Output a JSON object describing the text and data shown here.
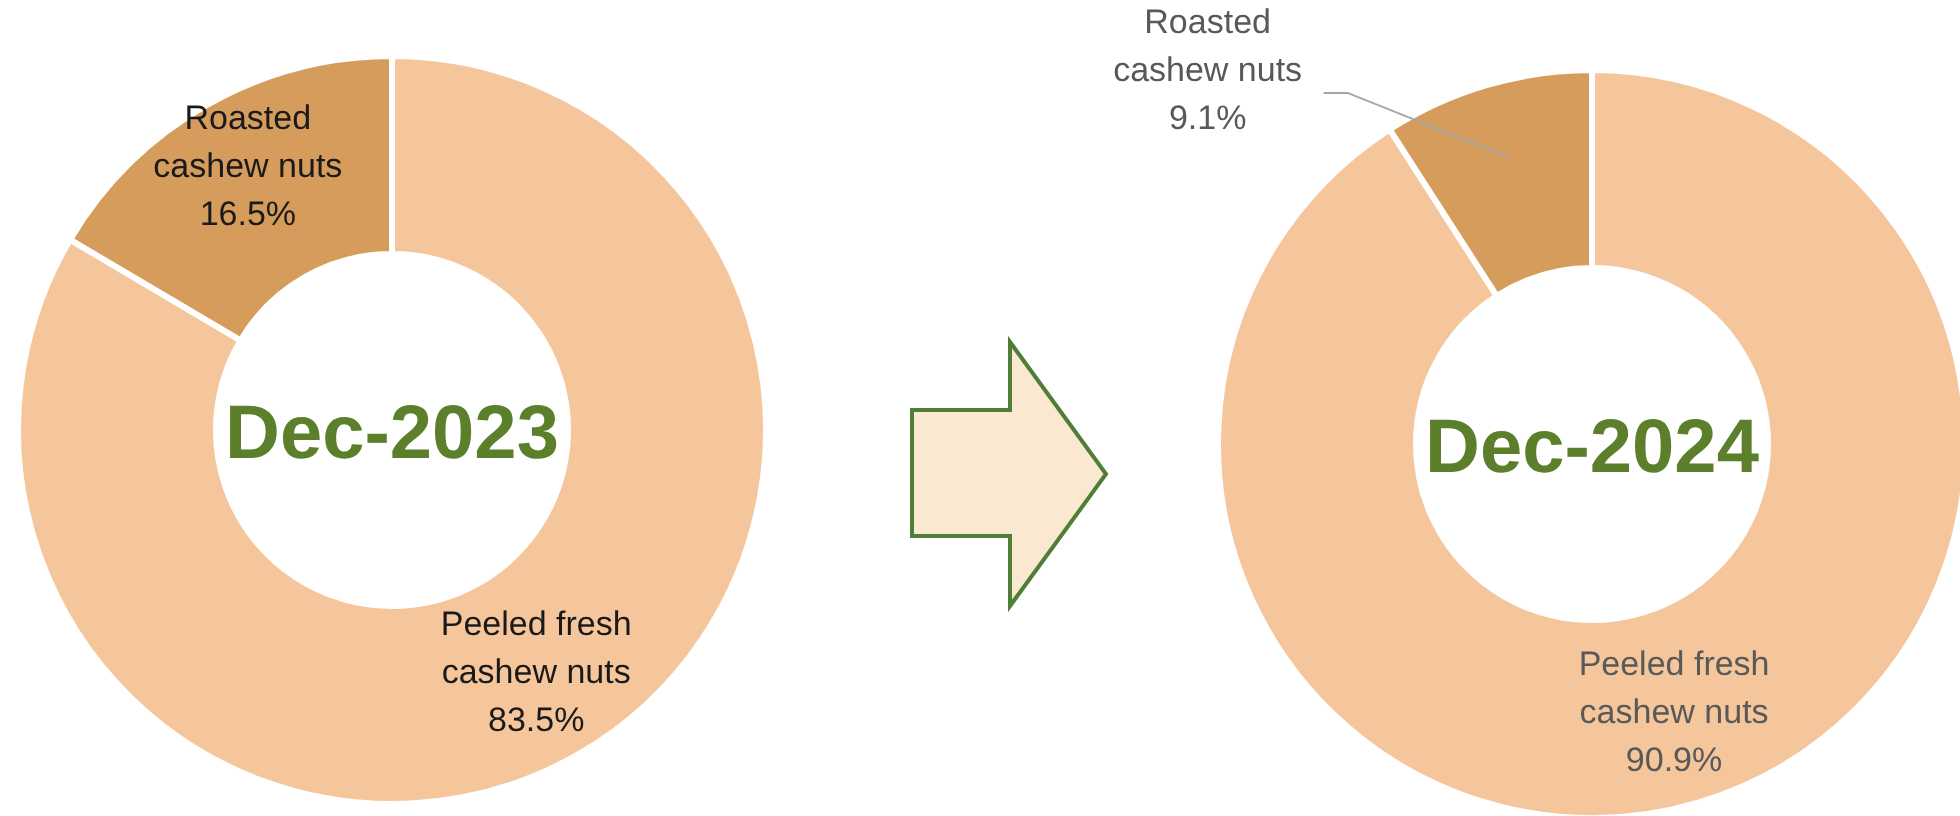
{
  "chart_data": [
    {
      "type": "donut",
      "title": "Dec-2023",
      "categories": [
        "Peeled fresh cashew nuts",
        "Roasted cashew nuts"
      ],
      "values": [
        83.5,
        16.5
      ],
      "value_labels": [
        "83.5%",
        "16.5%"
      ],
      "colors": [
        "#f5c69b",
        "#d69c5b"
      ]
    },
    {
      "type": "donut",
      "title": "Dec-2024",
      "categories": [
        "Peeled fresh cashew nuts",
        "Roasted cashew nuts"
      ],
      "values": [
        90.9,
        9.1
      ],
      "value_labels": [
        "90.9%",
        "9.1%"
      ],
      "colors": [
        "#f5c69b",
        "#d69c5b"
      ]
    }
  ]
}
